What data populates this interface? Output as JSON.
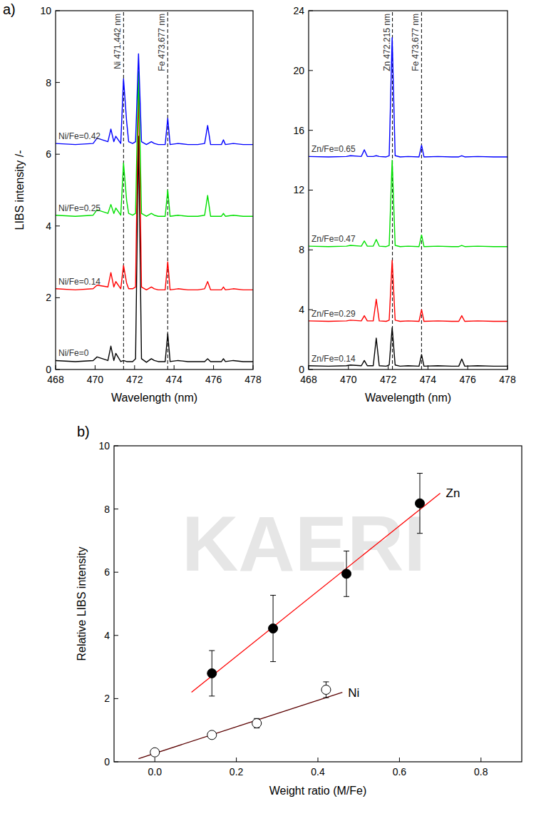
{
  "chart_data": [
    {
      "type": "line",
      "panel_label": "a)",
      "y_label": "LIBS intensity /-",
      "x_label": "Wavelength (nm)",
      "xlim": [
        468,
        478
      ],
      "xticks": [
        468,
        470,
        472,
        474,
        476,
        478
      ],
      "ylim": [
        0,
        10
      ],
      "yticks": [
        0,
        2,
        4,
        6,
        8,
        10
      ],
      "x": [
        468,
        469,
        469.9,
        470.1,
        470.65,
        470.8,
        470.95,
        471.05,
        471.3,
        471.44,
        471.6,
        471.7,
        471.9,
        472.05,
        472.2,
        472.35,
        472.6,
        472.85,
        473.0,
        473.2,
        473.55,
        473.68,
        473.8,
        474.2,
        474.7,
        475.2,
        475.55,
        475.7,
        475.85,
        476.4,
        476.5,
        476.6,
        477.0,
        477.5,
        478
      ],
      "series": [
        {
          "name": "Ni/Fe=0",
          "color": "#000000",
          "values": [
            0.25,
            0.22,
            0.25,
            0.35,
            0.25,
            0.65,
            0.25,
            0.45,
            0.22,
            0.25,
            0.22,
            0.22,
            0.22,
            0.3,
            6.5,
            0.3,
            0.2,
            0.3,
            0.25,
            0.22,
            0.22,
            1.0,
            0.22,
            0.25,
            0.22,
            0.22,
            0.22,
            0.3,
            0.22,
            0.22,
            0.3,
            0.22,
            0.25,
            0.22,
            0.22
          ]
        },
        {
          "name": "Ni/Fe=0.14",
          "color": "#ff0000",
          "values": [
            2.25,
            2.22,
            2.25,
            2.35,
            2.3,
            2.7,
            2.3,
            2.45,
            2.25,
            2.9,
            2.4,
            2.25,
            2.25,
            2.3,
            8.0,
            2.3,
            2.22,
            2.3,
            2.25,
            2.22,
            2.22,
            3.0,
            2.22,
            2.25,
            2.22,
            2.22,
            2.25,
            2.45,
            2.22,
            2.22,
            2.3,
            2.22,
            2.25,
            2.22,
            2.22
          ]
        },
        {
          "name": "Ni/Fe=0.25",
          "color": "#00e000",
          "values": [
            4.3,
            4.27,
            4.3,
            4.45,
            4.35,
            4.6,
            4.35,
            4.5,
            4.3,
            5.75,
            4.7,
            4.35,
            4.3,
            4.35,
            8.3,
            4.35,
            4.27,
            4.35,
            4.3,
            4.27,
            4.27,
            5.0,
            4.27,
            4.3,
            4.27,
            4.27,
            4.3,
            4.85,
            4.27,
            4.27,
            4.35,
            4.27,
            4.3,
            4.27,
            4.27
          ]
        },
        {
          "name": "Ni/Fe=0.42",
          "color": "#0000ff",
          "values": [
            6.3,
            6.27,
            6.3,
            6.45,
            6.35,
            6.7,
            6.35,
            6.5,
            6.3,
            8.1,
            6.9,
            6.35,
            6.3,
            6.35,
            8.8,
            6.35,
            6.27,
            6.35,
            6.3,
            6.27,
            6.27,
            7.0,
            6.27,
            6.3,
            6.27,
            6.27,
            6.3,
            6.8,
            6.27,
            6.27,
            6.4,
            6.27,
            6.3,
            6.27,
            6.27
          ]
        }
      ],
      "annotations": [
        {
          "text": "Ni 471.442 nm",
          "x": 471.442
        },
        {
          "text": "Fe 473.677 nm",
          "x": 473.677
        }
      ]
    },
    {
      "type": "line",
      "x_label": "Wavelength (nm)",
      "xlim": [
        468,
        478
      ],
      "xticks": [
        468,
        470,
        472,
        474,
        476,
        478
      ],
      "ylim": [
        0,
        24
      ],
      "yticks": [
        0,
        4,
        8,
        12,
        16,
        20,
        24
      ],
      "x": [
        468,
        469,
        469.9,
        470.1,
        470.65,
        470.8,
        470.95,
        471.25,
        471.4,
        471.55,
        471.9,
        472.05,
        472.2,
        472.35,
        472.6,
        473.0,
        473.55,
        473.68,
        473.8,
        474.5,
        475.2,
        475.55,
        475.7,
        475.85,
        476.5,
        477.3,
        478
      ],
      "series": [
        {
          "name": "Zn/Fe=0.14",
          "color": "#000000",
          "values": [
            0.25,
            0.22,
            0.25,
            0.3,
            0.25,
            0.6,
            0.25,
            0.25,
            2.1,
            0.25,
            0.22,
            0.3,
            2.8,
            0.3,
            0.22,
            0.25,
            0.22,
            1.0,
            0.22,
            0.25,
            0.22,
            0.22,
            0.7,
            0.22,
            0.25,
            0.22,
            0.22
          ]
        },
        {
          "name": "Zn/Fe=0.29",
          "color": "#ff0000",
          "values": [
            3.25,
            3.22,
            3.25,
            3.3,
            3.25,
            3.6,
            3.25,
            3.25,
            4.7,
            3.25,
            3.22,
            3.3,
            7.3,
            3.3,
            3.22,
            3.25,
            3.22,
            4.0,
            3.22,
            3.25,
            3.22,
            3.22,
            3.6,
            3.22,
            3.25,
            3.22,
            3.22
          ]
        },
        {
          "name": "Zn/Fe=0.47",
          "color": "#00e000",
          "values": [
            8.25,
            8.22,
            8.25,
            8.3,
            8.25,
            8.6,
            8.25,
            8.25,
            8.7,
            8.25,
            8.22,
            8.3,
            14.0,
            8.3,
            8.22,
            8.25,
            8.22,
            9.0,
            8.22,
            8.25,
            8.22,
            8.22,
            8.3,
            8.22,
            8.25,
            8.22,
            8.22
          ]
        },
        {
          "name": "Zn/Fe=0.65",
          "color": "#0000ff",
          "values": [
            14.25,
            14.22,
            14.25,
            14.3,
            14.25,
            14.7,
            14.25,
            14.25,
            14.3,
            14.25,
            14.22,
            14.3,
            22.2,
            14.3,
            14.22,
            14.25,
            14.22,
            15.0,
            14.22,
            14.25,
            14.22,
            14.22,
            14.3,
            14.22,
            14.25,
            14.22,
            14.22
          ]
        }
      ],
      "annotations": [
        {
          "text": "Zn 472.215 nm",
          "x": 472.215
        },
        {
          "text": "Fe 473.677 nm",
          "x": 473.677
        }
      ]
    },
    {
      "type": "scatter",
      "panel_label": "b)",
      "x_label": "Weight ratio (M/Fe)",
      "y_label": "Relative LIBS intensity",
      "xlim": [
        -0.1,
        0.9
      ],
      "xticks": [
        {
          "value": 0,
          "label": "0.0"
        },
        0.2,
        0.4,
        0.6,
        0.8
      ],
      "ylim": [
        0,
        10
      ],
      "yticks": [
        0,
        2,
        4,
        6,
        8,
        10
      ],
      "series": [
        {
          "name": "Zn",
          "marker": "filled circle",
          "color": "#000000",
          "x": [
            0.14,
            0.29,
            0.47,
            0.65
          ],
          "values": [
            2.8,
            4.22,
            5.95,
            8.18
          ],
          "errors": [
            0.72,
            1.05,
            0.72,
            0.95
          ]
        },
        {
          "name": "Ni",
          "marker": "open circle",
          "color": "#000000",
          "x": [
            0,
            0.14,
            0.25,
            0.42
          ],
          "values": [
            0.3,
            0.85,
            1.22,
            2.28
          ],
          "errors": [
            0.08,
            0.1,
            0.15,
            0.25
          ]
        }
      ],
      "fits": [
        {
          "color": "#ff0000",
          "x": [
            0.09,
            0.7
          ],
          "values": [
            2.2,
            8.5
          ]
        },
        {
          "color": "#5a0000",
          "x": [
            -0.04,
            0.46
          ],
          "values": [
            0.1,
            2.2
          ]
        }
      ],
      "annotations": [
        {
          "text": "KAERI"
        }
      ]
    }
  ]
}
